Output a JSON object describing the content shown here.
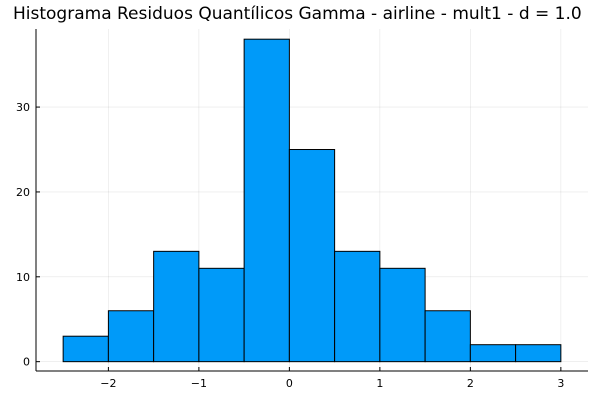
{
  "chart_data": {
    "type": "bar",
    "title": "Histograma Residuos Quantílicos Gamma - airline - mult1 - d = 1.0",
    "xlabel": "",
    "ylabel": "",
    "bin_edges": [
      -2.5,
      -2.0,
      -1.5,
      -1.0,
      -0.5,
      0.0,
      0.5,
      1.0,
      1.5,
      2.0,
      2.5,
      3.0
    ],
    "values": [
      3,
      6,
      13,
      11,
      38,
      25,
      13,
      11,
      6,
      2,
      2
    ],
    "xlim": [
      -2.8,
      3.3
    ],
    "ylim": [
      -1.1,
      39.2
    ],
    "x_ticks": [
      -2,
      -1,
      0,
      1,
      2,
      3
    ],
    "x_tick_labels": [
      "−2",
      "−1",
      "0",
      "1",
      "2",
      "3"
    ],
    "y_ticks": [
      0,
      10,
      20,
      30
    ],
    "y_tick_labels": [
      "0",
      "10",
      "20",
      "30"
    ],
    "grid": true,
    "legend": false,
    "bar_color": "#009af9",
    "edge_color": "#000000"
  }
}
